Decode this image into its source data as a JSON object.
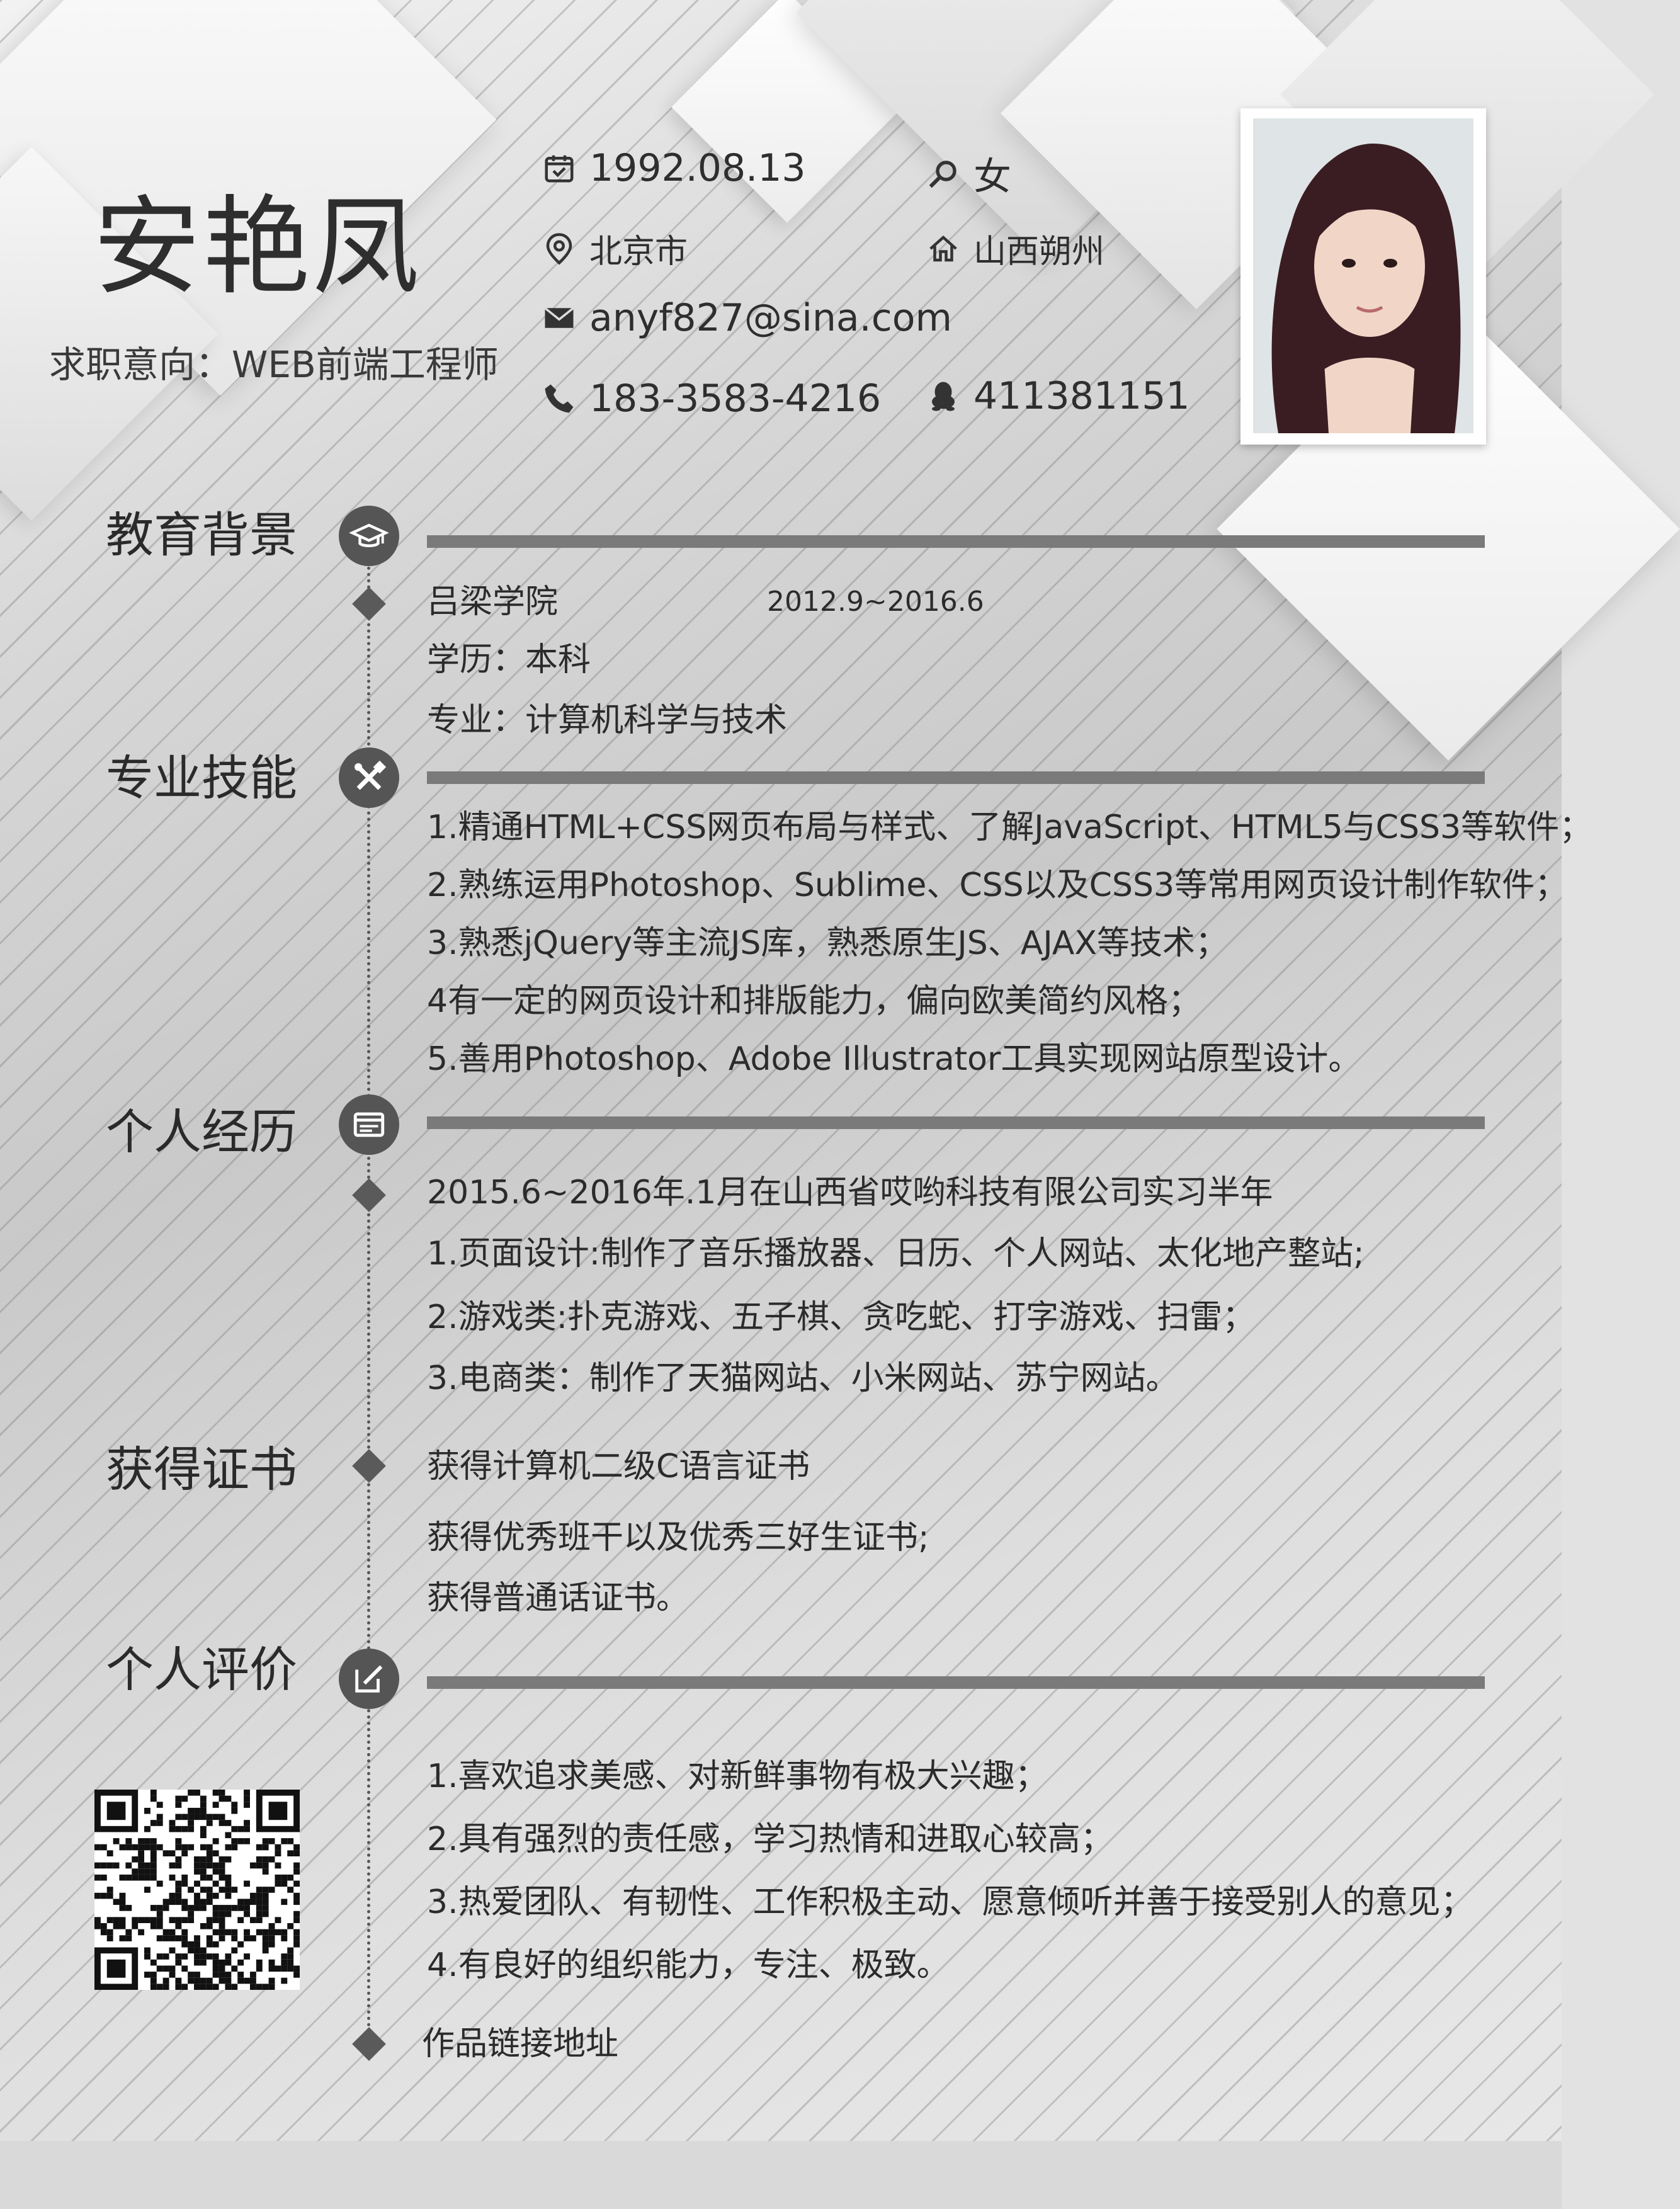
{
  "header": {
    "name": "安艳凤",
    "intent": "求职意向：WEB前端工程师",
    "birthday": "1992.08.13",
    "gender": "女",
    "city": "北京市",
    "hometown": "山西朔州",
    "email": "anyf827@sina.com",
    "phone": "183-3583-4216",
    "qq": "411381151"
  },
  "education": {
    "title": "教育背景",
    "school": "吕梁学院",
    "period": "2012.9~2016.6",
    "degree": "学历：本科",
    "major": "专业：计算机科学与技术"
  },
  "skills": {
    "title": "专业技能",
    "items": [
      "1.精通HTML+CSS网页布局与样式、了解JavaScript、HTML5与CSS3等软件；",
      "2.熟练运用Photoshop、Sublime、CSS以及CSS3等常用网页设计制作软件；",
      "3.熟悉jQuery等主流JS库，熟悉原生JS、AJAX等技术；",
      "4有一定的网页设计和排版能力，偏向欧美简约风格；",
      "5.善用Photoshop、Adobe Illustrator工具实现网站原型设计。"
    ]
  },
  "experience": {
    "title": "个人经历",
    "items": [
      "2015.6~2016年.1月在山西省哎哟科技有限公司实习半年",
      "1.页面设计:制作了音乐播放器、日历、个人网站、太化地产整站;",
      "2.游戏类:扑克游戏、五子棋、贪吃蛇、打字游戏、扫雷；",
      "3.电商类：制作了天猫网站、小米网站、苏宁网站。"
    ]
  },
  "certificates": {
    "title": "获得证书",
    "items": [
      "获得计算机二级C语言证书",
      "获得优秀班干以及优秀三好生证书;",
      "获得普通话证书。"
    ]
  },
  "evaluation": {
    "title": "个人评价",
    "items": [
      "1.喜欢追求美感、对新鲜事物有极大兴趣；",
      "2.具有强烈的责任感，学习热情和进取心较高；",
      "3.热爱团队、有韧性、工作积极主动、愿意倾听并善于接受别人的意见；",
      "4.有良好的组织能力，专注、极致。"
    ]
  },
  "portfolio_link": "作品链接地址",
  "icons": {
    "birthday": "calendar-icon",
    "gender": "search-icon",
    "city": "location-pin-icon",
    "hometown": "home-icon",
    "email": "envelope-icon",
    "phone": "phone-icon",
    "qq": "qq-penguin-icon",
    "education": "graduation-cap-icon",
    "skills": "tools-icon",
    "experience": "id-card-icon",
    "evaluation": "edit-icon"
  },
  "colors": {
    "accent": "#555555",
    "bar": "#7a7a7a",
    "text": "#2b2b2b"
  }
}
